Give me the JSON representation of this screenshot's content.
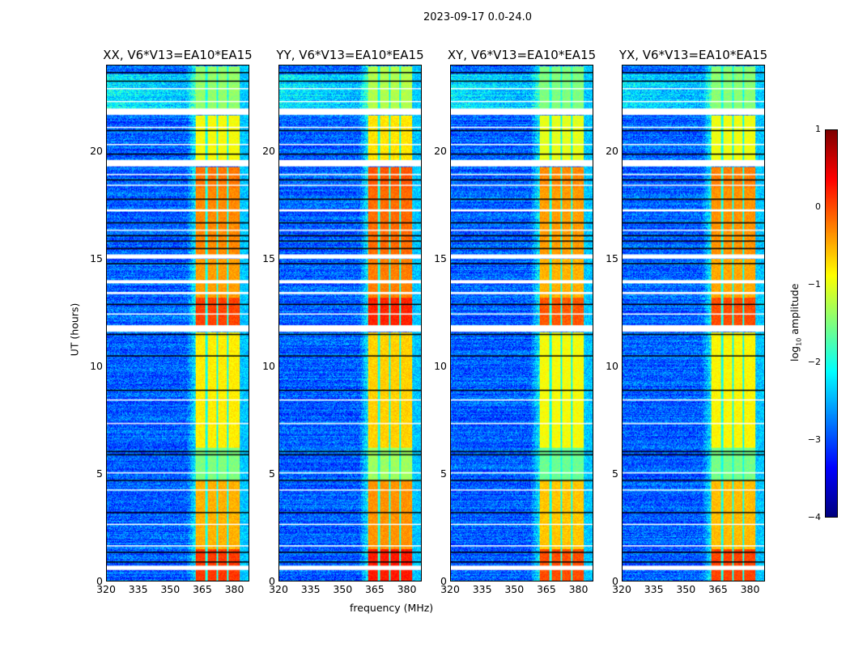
{
  "suptitle": "2023-09-17 0.0-24.0",
  "chart_data": {
    "type": "heatmap",
    "title": "2023-09-17 0.0-24.0",
    "xlabel": "frequency (MHz)",
    "ylabel": "UT (hours)",
    "xlim": [
      320,
      387
    ],
    "ylim": [
      0,
      24
    ],
    "xticks": [
      "320",
      "335",
      "350",
      "365",
      "380"
    ],
    "xtick_values": [
      320,
      335,
      350,
      365,
      380
    ],
    "yticks": [
      "0",
      "5",
      "10",
      "15",
      "20"
    ],
    "ytick_values": [
      0,
      5,
      10,
      15,
      20
    ],
    "colorbar": {
      "label_main": "log",
      "label_sub": "10",
      "label_rest": " amplitude",
      "colormap": "jet",
      "range": [
        -4,
        1
      ],
      "ticks": [
        "1",
        "0",
        "−1",
        "−2",
        "−3",
        "−4"
      ],
      "tick_values": [
        1,
        0,
        -1,
        -2,
        -3,
        -4
      ]
    },
    "panels": [
      {
        "title": "XX, V6*V13=EA10*EA15",
        "band_offset": 0.0
      },
      {
        "title": "YY, V6*V13=EA10*EA15",
        "band_offset": 0.15
      },
      {
        "title": "XY, V6*V13=EA10*EA15",
        "band_offset": -0.1
      },
      {
        "title": "YX, V6*V13=EA10*EA15",
        "band_offset": -0.05
      }
    ],
    "background_log_amplitude": -2.9,
    "rfi_band_mhz": [
      362,
      382.5
    ],
    "rfi_subband_gaps_mhz": [
      367,
      372,
      377
    ],
    "rfi_band_levels": [
      {
        "t": [
          0,
          1.5
        ],
        "level": 0.1
      },
      {
        "t": [
          1.5,
          4.7
        ],
        "level": -0.5
      },
      {
        "t": [
          4.7,
          6.2
        ],
        "level": -1.5
      },
      {
        "t": [
          6.2,
          11.6
        ],
        "level": -0.8
      },
      {
        "t": [
          11.9,
          13.2
        ],
        "level": 0.05
      },
      {
        "t": [
          13.2,
          15.0
        ],
        "level": -0.4
      },
      {
        "t": [
          15.2,
          18.3
        ],
        "level": -0.3
      },
      {
        "t": [
          18.3,
          19.3
        ],
        "level": -0.2
      },
      {
        "t": [
          19.6,
          21.7
        ],
        "level": -0.9
      },
      {
        "t": [
          22.0,
          24.0
        ],
        "level": -1.4
      }
    ],
    "flagged_hours": [
      [
        0.5,
        0.7
      ],
      [
        1.6,
        1.65
      ],
      [
        2.6,
        2.65
      ],
      [
        4.2,
        4.25
      ],
      [
        5.0,
        5.05
      ],
      [
        7.3,
        7.35
      ],
      [
        8.4,
        8.45
      ],
      [
        11.6,
        11.9
      ],
      [
        12.4,
        12.45
      ],
      [
        13.35,
        13.45
      ],
      [
        13.85,
        14.0
      ],
      [
        15.0,
        15.2
      ],
      [
        16.3,
        16.35
      ],
      [
        17.2,
        17.3
      ],
      [
        18.4,
        18.45
      ],
      [
        18.9,
        18.95
      ],
      [
        19.3,
        19.6
      ],
      [
        20.3,
        20.35
      ],
      [
        21.1,
        21.15
      ],
      [
        21.7,
        22.0
      ],
      [
        22.3,
        22.35
      ],
      [
        22.9,
        22.95
      ]
    ],
    "dark_rows_hours": [
      0.9,
      1.35,
      3.2,
      4.7,
      5.9,
      6.05,
      8.9,
      10.5,
      11.5,
      12.9,
      14.8,
      15.5,
      15.85,
      16.1,
      16.7,
      17.8,
      18.7,
      19.9,
      21.0,
      23.3,
      23.7
    ]
  }
}
